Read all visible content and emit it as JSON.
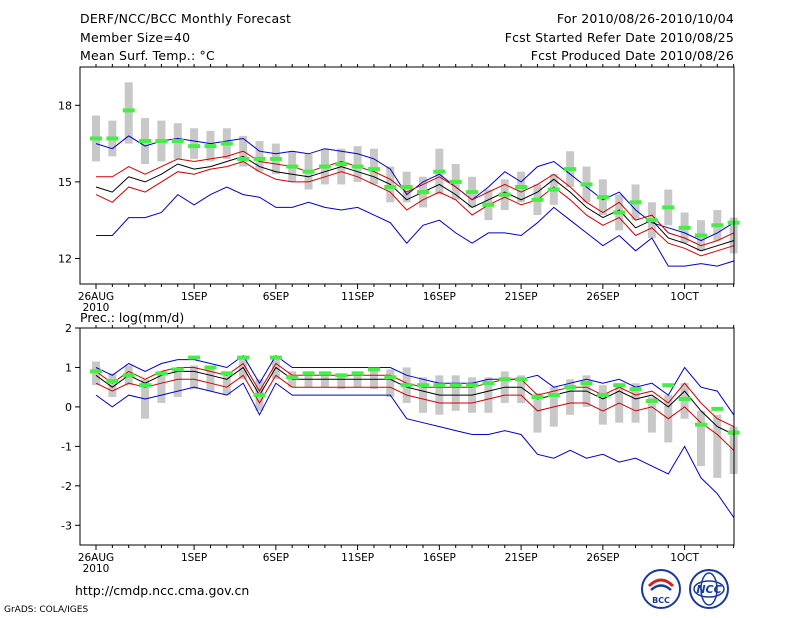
{
  "header": {
    "title": "DERF/NCC/BCC Monthly Forecast",
    "member_size": "Member Size=40",
    "variable": "Mean Surf. Temp.: °C",
    "period": "For 2010/08/26-2010/10/04",
    "started": "Fcst Started Refer Date 2010/08/25",
    "produced": "Fcst Produced Date 2010/08/26"
  },
  "footer": {
    "url": "http://cmdp.ncc.cma.gov.cn",
    "grads": "GrADS: COLA/IGES",
    "logo1_text": "BCC",
    "logo2_text": "NCC"
  },
  "colors": {
    "mean": "#000000",
    "spread": "#d00000",
    "envelope": "#0000cc",
    "box": "#c8c8c8",
    "marker": "#44ee44"
  },
  "chart_data": [
    {
      "type": "line",
      "title": "Mean Surf. Temp.: °C",
      "ylim": [
        11,
        19.5
      ],
      "yticks": [
        12,
        15,
        18
      ],
      "x_ticks": [
        "26AUG",
        "1SEP",
        "6SEP",
        "11SEP",
        "16SEP",
        "21SEP",
        "26SEP",
        "1OCT"
      ],
      "x_tick_index": [
        0,
        6,
        11,
        16,
        21,
        26,
        31,
        36
      ],
      "x_sublabel": "2010",
      "days": 40,
      "series": [
        {
          "name": "upper",
          "color": "blue",
          "values": [
            16.5,
            16.3,
            16.8,
            16.4,
            16.6,
            16.7,
            16.6,
            16.5,
            16.6,
            16.7,
            16.2,
            16.1,
            16.2,
            16.1,
            16.3,
            16.2,
            16.1,
            15.9,
            15.5,
            14.5,
            15.0,
            15.3,
            14.8,
            14.3,
            14.8,
            15.4,
            15.0,
            15.6,
            15.8,
            15.3,
            14.8,
            14.3,
            14.6,
            13.9,
            13.4,
            13.2,
            13.0,
            12.7,
            13.0,
            13.4
          ]
        },
        {
          "name": "red-upper",
          "color": "red",
          "values": [
            15.2,
            15.2,
            15.6,
            15.3,
            15.6,
            15.9,
            15.8,
            15.9,
            16.0,
            16.2,
            15.8,
            15.7,
            15.6,
            15.4,
            15.6,
            15.8,
            15.6,
            15.4,
            15.1,
            14.6,
            14.9,
            15.2,
            14.8,
            14.3,
            14.6,
            14.9,
            14.6,
            14.9,
            15.3,
            14.8,
            14.2,
            13.8,
            14.2,
            13.5,
            13.7,
            13.0,
            12.8,
            12.5,
            12.7,
            13.0
          ]
        },
        {
          "name": "mean",
          "color": "black",
          "values": [
            14.8,
            14.6,
            15.2,
            15.0,
            15.3,
            15.7,
            15.5,
            15.6,
            15.8,
            16.0,
            15.6,
            15.4,
            15.3,
            15.2,
            15.4,
            15.6,
            15.4,
            15.2,
            14.9,
            14.3,
            14.6,
            14.9,
            14.5,
            14.0,
            14.3,
            14.6,
            14.3,
            14.6,
            15.1,
            14.6,
            14.0,
            13.6,
            13.9,
            13.2,
            13.5,
            12.8,
            12.6,
            12.3,
            12.5,
            12.7
          ]
        },
        {
          "name": "red-lower",
          "color": "red",
          "values": [
            14.5,
            14.2,
            14.8,
            14.6,
            15.0,
            15.4,
            15.3,
            15.5,
            15.6,
            15.8,
            15.4,
            15.1,
            15.0,
            15.0,
            15.2,
            15.4,
            15.2,
            14.9,
            14.6,
            13.9,
            14.3,
            14.6,
            14.3,
            13.7,
            14.1,
            14.4,
            14.1,
            14.3,
            14.8,
            14.3,
            13.7,
            13.3,
            13.6,
            12.9,
            13.2,
            12.6,
            12.4,
            12.1,
            12.3,
            12.5
          ]
        },
        {
          "name": "lower",
          "color": "blue",
          "values": [
            12.9,
            12.9,
            13.6,
            13.6,
            13.8,
            14.5,
            14.1,
            14.5,
            14.8,
            14.5,
            14.4,
            14.0,
            14.0,
            14.2,
            14.0,
            13.9,
            14.0,
            13.7,
            13.4,
            12.6,
            13.3,
            13.5,
            13.0,
            12.6,
            13.0,
            13.0,
            12.9,
            13.4,
            14.0,
            13.5,
            13.0,
            12.5,
            12.9,
            12.3,
            12.8,
            11.7,
            11.7,
            11.8,
            11.7,
            11.9
          ]
        }
      ],
      "box_mid": [
        16.7,
        16.7,
        17.7,
        16.6,
        16.6,
        16.6,
        16.5,
        16.4,
        16.5,
        16.2,
        16.0,
        15.9,
        15.6,
        15.4,
        15.6,
        15.6,
        15.7,
        15.6,
        14.9,
        14.8,
        14.6,
        15.4,
        15.0,
        14.6,
        14.1,
        14.5,
        14.8,
        14.3,
        14.7,
        15.5,
        14.9,
        14.4,
        13.8,
        14.2,
        13.5,
        14.0,
        13.2,
        12.9,
        13.3,
        12.9
      ],
      "box_half": [
        0.9,
        0.7,
        1.2,
        0.9,
        0.8,
        0.7,
        0.6,
        0.6,
        0.6,
        0.6,
        0.6,
        0.6,
        0.6,
        0.7,
        0.7,
        0.7,
        0.7,
        0.7,
        0.7,
        0.6,
        0.6,
        0.9,
        0.7,
        0.6,
        0.6,
        0.6,
        0.6,
        0.6,
        0.6,
        0.7,
        0.7,
        0.7,
        0.7,
        0.7,
        0.7,
        0.7,
        0.6,
        0.6,
        0.6,
        0.7
      ],
      "markers": [
        16.7,
        16.7,
        17.8,
        16.6,
        16.6,
        16.6,
        16.4,
        16.4,
        16.5,
        15.9,
        15.9,
        15.9,
        15.6,
        15.4,
        15.6,
        15.7,
        15.6,
        15.5,
        14.8,
        14.8,
        14.6,
        15.4,
        15.0,
        14.6,
        14.1,
        14.5,
        14.8,
        14.3,
        14.7,
        15.5,
        14.9,
        14.4,
        13.8,
        14.2,
        13.5,
        14.0,
        13.2,
        12.9,
        13.3,
        13.4
      ]
    },
    {
      "type": "line",
      "title": "Prec.: log(mm/d)",
      "ylim": [
        -3.5,
        2
      ],
      "yticks": [
        -3,
        -2,
        -1,
        0,
        1,
        2
      ],
      "x_ticks": [
        "26AUG",
        "1SEP",
        "6SEP",
        "11SEP",
        "16SEP",
        "21SEP",
        "26SEP",
        "1OCT"
      ],
      "x_tick_index": [
        0,
        6,
        11,
        16,
        21,
        26,
        31,
        36
      ],
      "x_sublabel": "2010",
      "days": 40,
      "series": [
        {
          "name": "upper",
          "color": "blue",
          "values": [
            1.0,
            0.8,
            1.1,
            0.9,
            1.1,
            1.2,
            1.2,
            1.1,
            1.0,
            1.3,
            0.6,
            1.3,
            1.0,
            1.0,
            1.0,
            1.0,
            1.0,
            1.0,
            1.0,
            0.8,
            0.7,
            0.6,
            0.6,
            0.6,
            0.7,
            0.7,
            0.7,
            0.8,
            0.5,
            0.6,
            0.7,
            0.6,
            0.7,
            0.5,
            0.6,
            0.3,
            1.0,
            0.5,
            0.4,
            -0.2
          ]
        },
        {
          "name": "red-upper",
          "color": "red",
          "values": [
            0.9,
            0.6,
            0.9,
            0.7,
            0.9,
            1.0,
            1.0,
            0.9,
            0.8,
            1.1,
            0.4,
            1.1,
            0.8,
            0.8,
            0.8,
            0.8,
            0.8,
            0.8,
            0.8,
            0.6,
            0.5,
            0.5,
            0.5,
            0.5,
            0.6,
            0.7,
            0.7,
            0.3,
            0.4,
            0.5,
            0.5,
            0.3,
            0.5,
            0.3,
            0.4,
            0.1,
            0.6,
            0.1,
            -0.3,
            -0.5
          ]
        },
        {
          "name": "mean",
          "color": "black",
          "values": [
            0.8,
            0.5,
            0.8,
            0.6,
            0.8,
            0.9,
            0.9,
            0.8,
            0.7,
            1.0,
            0.3,
            1.0,
            0.7,
            0.7,
            0.7,
            0.7,
            0.7,
            0.7,
            0.7,
            0.5,
            0.4,
            0.3,
            0.3,
            0.3,
            0.4,
            0.5,
            0.5,
            0.2,
            0.3,
            0.4,
            0.4,
            0.2,
            0.4,
            0.2,
            0.3,
            0.0,
            0.4,
            -0.1,
            -0.5,
            -0.7
          ]
        },
        {
          "name": "red-lower",
          "color": "red",
          "values": [
            0.6,
            0.4,
            0.6,
            0.5,
            0.6,
            0.7,
            0.7,
            0.6,
            0.5,
            0.8,
            0.1,
            0.8,
            0.5,
            0.5,
            0.5,
            0.5,
            0.5,
            0.5,
            0.5,
            0.3,
            0.2,
            0.1,
            0.1,
            0.1,
            0.2,
            0.3,
            0.3,
            -0.1,
            0.0,
            0.1,
            0.1,
            -0.1,
            0.1,
            -0.1,
            0.0,
            -0.3,
            0.0,
            -0.4,
            -0.7,
            -1.1
          ]
        },
        {
          "name": "lower",
          "color": "blue",
          "values": [
            0.3,
            0.0,
            0.3,
            0.2,
            0.3,
            0.4,
            0.5,
            0.4,
            0.3,
            0.6,
            -0.2,
            0.6,
            0.3,
            0.3,
            0.3,
            0.3,
            0.3,
            0.3,
            0.3,
            -0.3,
            -0.4,
            -0.5,
            -0.6,
            -0.7,
            -0.7,
            -0.6,
            -0.7,
            -1.2,
            -1.3,
            -1.1,
            -1.3,
            -1.2,
            -1.4,
            -1.3,
            -1.5,
            -1.7,
            -1.0,
            -1.8,
            -2.2,
            -2.8
          ]
        }
      ],
      "box_mid": [
        0.85,
        0.55,
        0.8,
        0.2,
        0.5,
        0.6,
        0.75,
        0.7,
        0.6,
        1.0,
        0.3,
        1.0,
        0.7,
        0.7,
        0.7,
        0.65,
        0.7,
        0.7,
        0.6,
        0.55,
        0.3,
        0.3,
        0.35,
        0.3,
        0.3,
        0.5,
        0.45,
        -0.15,
        0.0,
        0.25,
        0.4,
        0.05,
        0.1,
        0.1,
        -0.2,
        -0.3,
        0.15,
        -0.8,
        -1.0,
        -1.1
      ],
      "box_half": [
        0.3,
        0.3,
        0.25,
        0.5,
        0.4,
        0.35,
        0.3,
        0.3,
        0.3,
        0.3,
        0.4,
        0.3,
        0.2,
        0.2,
        0.2,
        0.2,
        0.2,
        0.25,
        0.35,
        0.45,
        0.45,
        0.5,
        0.45,
        0.45,
        0.45,
        0.4,
        0.35,
        0.5,
        0.5,
        0.45,
        0.4,
        0.5,
        0.5,
        0.5,
        0.45,
        0.6,
        0.45,
        0.7,
        0.8,
        0.6
      ],
      "markers": [
        0.9,
        0.65,
        0.8,
        0.55,
        0.85,
        0.95,
        1.25,
        1.0,
        0.85,
        1.25,
        0.3,
        1.25,
        0.75,
        0.85,
        0.85,
        0.8,
        0.85,
        0.95,
        0.75,
        0.55,
        0.55,
        0.55,
        0.55,
        0.55,
        0.6,
        0.7,
        0.7,
        0.25,
        0.3,
        0.5,
        0.6,
        0.3,
        0.55,
        0.45,
        0.15,
        0.55,
        0.2,
        -0.45,
        -0.05,
        -0.65
      ]
    }
  ]
}
